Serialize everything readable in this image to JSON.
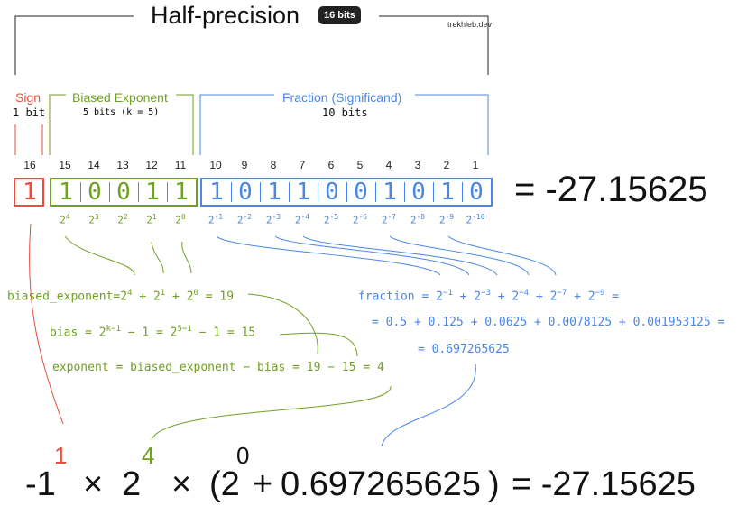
{
  "header": {
    "title": "Half-precision",
    "badge": "16 bits",
    "credit": "trekhleb.dev"
  },
  "sections": {
    "sign": {
      "title": "Sign",
      "subtitle": "1 bit"
    },
    "exponent": {
      "title": "Biased Exponent",
      "subtitle": "5 bits (k = 5)"
    },
    "fraction": {
      "title": "Fraction (Significand)",
      "subtitle": "10 bits"
    }
  },
  "bit_positions": [
    "16",
    "15",
    "14",
    "13",
    "12",
    "11",
    "10",
    "9",
    "8",
    "7",
    "6",
    "5",
    "4",
    "3",
    "2",
    "1"
  ],
  "bits": {
    "sign": [
      "1"
    ],
    "exponent": [
      "1",
      "0",
      "0",
      "1",
      "1"
    ],
    "fraction": [
      "1",
      "0",
      "1",
      "1",
      "0",
      "0",
      "1",
      "0",
      "1",
      "0"
    ]
  },
  "equals_result": "=  -27.15625",
  "powers": {
    "exponent": [
      {
        "base": "2",
        "exp": "4"
      },
      {
        "base": "2",
        "exp": "3"
      },
      {
        "base": "2",
        "exp": "2"
      },
      {
        "base": "2",
        "exp": "1"
      },
      {
        "base": "2",
        "exp": "0"
      }
    ],
    "fraction": [
      {
        "base": "2",
        "exp": "-1"
      },
      {
        "base": "2",
        "exp": "-2"
      },
      {
        "base": "2",
        "exp": "-3"
      },
      {
        "base": "2",
        "exp": "-4"
      },
      {
        "base": "2",
        "exp": "-5"
      },
      {
        "base": "2",
        "exp": "-6"
      },
      {
        "base": "2",
        "exp": "-7"
      },
      {
        "base": "2",
        "exp": "-8"
      },
      {
        "base": "2",
        "exp": "-9"
      },
      {
        "base": "2",
        "exp": "-10"
      }
    ]
  },
  "formulas": {
    "biased_exponent": {
      "lhs": "biased_exponent",
      "eq": "=",
      "terms": [
        {
          "base": "2",
          "exp": "4"
        },
        {
          "base": "2",
          "exp": "1"
        },
        {
          "base": "2",
          "exp": "0"
        }
      ],
      "plus": "+",
      "result": "= 19"
    },
    "bias": {
      "prefix": "bias = 2",
      "exp1": "k−1",
      "mid": " − 1 = 2",
      "exp2": "5−1",
      "suffix": " − 1 = 15"
    },
    "exponent": "exponent = biased_exponent  − bias = 19 − 15 = 4",
    "fraction": {
      "lhs": "fraction =",
      "terms": [
        {
          "base": "2",
          "exp": "−1"
        },
        {
          "base": "2",
          "exp": "−3"
        },
        {
          "base": "2",
          "exp": "−4"
        },
        {
          "base": "2",
          "exp": "−7"
        },
        {
          "base": "2",
          "exp": "−9"
        }
      ],
      "plus": "+",
      "tail": "=",
      "line2": "= 0.5 + 0.125 + 0.0625 + 0.0078125 + 0.001953125 =",
      "line3": "= 0.697265625"
    }
  },
  "final": {
    "neg1": "-1",
    "sign_exp": "1",
    "times1": "×",
    "two": "2",
    "exp_exp": "4",
    "times2": "×",
    "open": "(2",
    "two_exp": "0",
    "plus": "+",
    "fraction": "0.697265625",
    "close": ")",
    "result": "=  -27.15625"
  },
  "colors": {
    "sign": "#e74c3c",
    "exponent": "#6fa020",
    "fraction": "#4a86e8",
    "text": "#111111"
  }
}
